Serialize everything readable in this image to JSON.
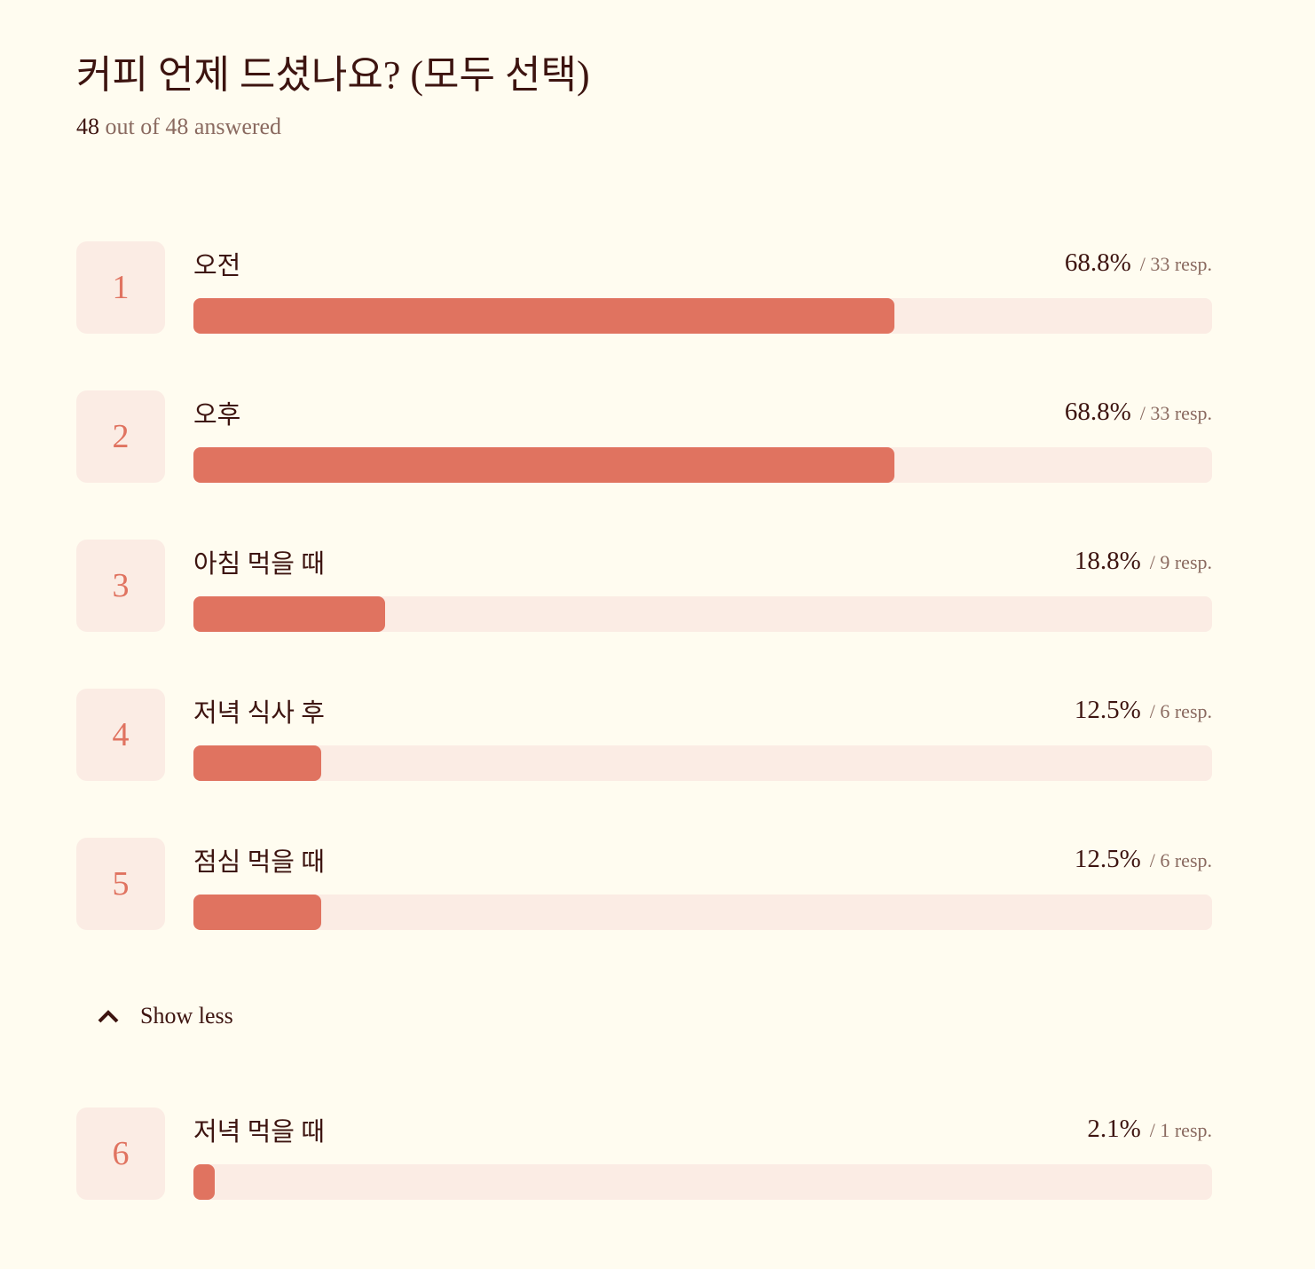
{
  "header": {
    "title": "커피 언제 드셨나요? (모두 선택)",
    "answered": "48",
    "answered_text": "out of 48 answered"
  },
  "scale": [
    0,
    100
  ],
  "items": [
    {
      "rank": "1",
      "label": "오전",
      "percent": 68.8,
      "percent_label": "68.8%",
      "responses_label": "/ 33 resp."
    },
    {
      "rank": "2",
      "label": "오후",
      "percent": 68.8,
      "percent_label": "68.8%",
      "responses_label": "/ 33 resp."
    },
    {
      "rank": "3",
      "label": "아침 먹을 때",
      "percent": 18.8,
      "percent_label": "18.8%",
      "responses_label": "/ 9 resp."
    },
    {
      "rank": "4",
      "label": "저녁 식사 후",
      "percent": 12.5,
      "percent_label": "12.5%",
      "responses_label": "/ 6 resp."
    },
    {
      "rank": "5",
      "label": "점심 먹을 때",
      "percent": 12.5,
      "percent_label": "12.5%",
      "responses_label": "/ 6 resp."
    },
    {
      "rank": "6",
      "label": "저녁 먹을 때",
      "percent": 2.1,
      "percent_label": "2.1%",
      "responses_label": "/ 1 resp."
    }
  ],
  "toggle": "Show less"
}
